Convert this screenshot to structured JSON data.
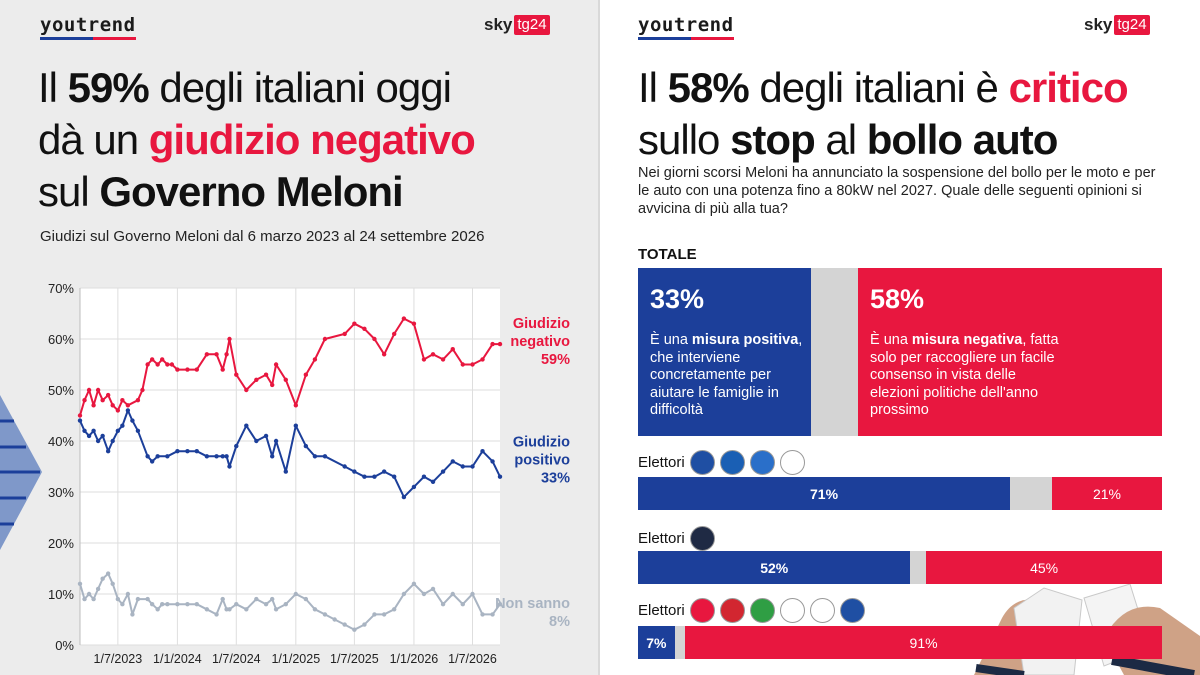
{
  "left": {
    "logo": "youtrend",
    "broadcaster": {
      "sky": "sky",
      "tg": "tg24"
    },
    "headline": {
      "l1_pre": "Il ",
      "l1_bold": "59%",
      "l1_post": " degli italiani oggi",
      "l2_pre": "dà un ",
      "l2_red": "giudizio negativo",
      "l3_pre": "sul ",
      "l3_bold": "Governo Meloni"
    },
    "subtitle": "Giudizi sul Governo Meloni dal 6 marzo 2023 al 24 settembre 2026"
  },
  "chart_data": {
    "type": "line",
    "subtitle": "Giudizi sul Governo Meloni dal 6 marzo 2023 al 24 settembre 2026",
    "x_ticks": [
      "1/7/2023",
      "1/1/2024",
      "1/7/2024",
      "1/1/2025",
      "1/7/2025",
      "1/1/2026",
      "1/7/2026"
    ],
    "y_ticks": [
      "0%",
      "10%",
      "20%",
      "30%",
      "40%",
      "50%",
      "60%",
      "70%"
    ],
    "ylim": [
      0,
      70
    ],
    "xlim": [
      "2023-03-06",
      "2026-09-24"
    ],
    "grid": true,
    "series": [
      {
        "name": "Giudizio negativo",
        "end_label": "59%",
        "color": "#e8173f",
        "points": [
          [
            "2023-03-06",
            45
          ],
          [
            "2023-03-20",
            48
          ],
          [
            "2023-04-03",
            50
          ],
          [
            "2023-04-17",
            47
          ],
          [
            "2023-05-01",
            50
          ],
          [
            "2023-05-15",
            48
          ],
          [
            "2023-06-01",
            49
          ],
          [
            "2023-06-15",
            47
          ],
          [
            "2023-07-01",
            46
          ],
          [
            "2023-07-15",
            48
          ],
          [
            "2023-08-01",
            47
          ],
          [
            "2023-09-01",
            48
          ],
          [
            "2023-09-15",
            50
          ],
          [
            "2023-10-01",
            55
          ],
          [
            "2023-10-15",
            56
          ],
          [
            "2023-11-01",
            55
          ],
          [
            "2023-11-15",
            56
          ],
          [
            "2023-12-01",
            55
          ],
          [
            "2023-12-15",
            55
          ],
          [
            "2024-01-01",
            54
          ],
          [
            "2024-02-01",
            54
          ],
          [
            "2024-03-01",
            54
          ],
          [
            "2024-04-01",
            57
          ],
          [
            "2024-05-01",
            57
          ],
          [
            "2024-05-20",
            54
          ],
          [
            "2024-06-01",
            57
          ],
          [
            "2024-06-10",
            60
          ],
          [
            "2024-07-01",
            53
          ],
          [
            "2024-08-01",
            50
          ],
          [
            "2024-09-01",
            52
          ],
          [
            "2024-10-01",
            53
          ],
          [
            "2024-10-20",
            51
          ],
          [
            "2024-11-01",
            55
          ],
          [
            "2024-12-01",
            52
          ],
          [
            "2025-01-01",
            47
          ],
          [
            "2025-02-01",
            53
          ],
          [
            "2025-03-01",
            56
          ],
          [
            "2025-04-01",
            60
          ],
          [
            "2025-06-01",
            61
          ],
          [
            "2025-07-01",
            63
          ],
          [
            "2025-08-01",
            62
          ],
          [
            "2025-09-01",
            60
          ],
          [
            "2025-10-01",
            57
          ],
          [
            "2025-11-01",
            61
          ],
          [
            "2025-12-01",
            64
          ],
          [
            "2026-01-01",
            63
          ],
          [
            "2026-02-01",
            56
          ],
          [
            "2026-03-01",
            57
          ],
          [
            "2026-04-01",
            56
          ],
          [
            "2026-05-01",
            58
          ],
          [
            "2026-06-01",
            55
          ],
          [
            "2026-07-01",
            55
          ],
          [
            "2026-08-01",
            56
          ],
          [
            "2026-09-01",
            59
          ],
          [
            "2026-09-24",
            59
          ]
        ]
      },
      {
        "name": "Giudizio positivo",
        "end_label": "33%",
        "color": "#1c3f9a",
        "points": [
          [
            "2023-03-06",
            44
          ],
          [
            "2023-03-20",
            42
          ],
          [
            "2023-04-03",
            41
          ],
          [
            "2023-04-17",
            42
          ],
          [
            "2023-05-01",
            40
          ],
          [
            "2023-05-15",
            41
          ],
          [
            "2023-06-01",
            38
          ],
          [
            "2023-06-15",
            40
          ],
          [
            "2023-07-01",
            42
          ],
          [
            "2023-07-15",
            43
          ],
          [
            "2023-08-01",
            46
          ],
          [
            "2023-08-15",
            44
          ],
          [
            "2023-09-01",
            42
          ],
          [
            "2023-10-01",
            37
          ],
          [
            "2023-10-15",
            36
          ],
          [
            "2023-11-01",
            37
          ],
          [
            "2023-12-01",
            37
          ],
          [
            "2024-01-01",
            38
          ],
          [
            "2024-02-01",
            38
          ],
          [
            "2024-03-01",
            38
          ],
          [
            "2024-04-01",
            37
          ],
          [
            "2024-05-01",
            37
          ],
          [
            "2024-05-20",
            37
          ],
          [
            "2024-06-01",
            37
          ],
          [
            "2024-06-10",
            35
          ],
          [
            "2024-07-01",
            39
          ],
          [
            "2024-08-01",
            43
          ],
          [
            "2024-09-01",
            40
          ],
          [
            "2024-10-01",
            41
          ],
          [
            "2024-10-20",
            37
          ],
          [
            "2024-11-01",
            40
          ],
          [
            "2024-12-01",
            34
          ],
          [
            "2025-01-01",
            43
          ],
          [
            "2025-02-01",
            39
          ],
          [
            "2025-03-01",
            37
          ],
          [
            "2025-04-01",
            37
          ],
          [
            "2025-06-01",
            35
          ],
          [
            "2025-07-01",
            34
          ],
          [
            "2025-08-01",
            33
          ],
          [
            "2025-09-01",
            33
          ],
          [
            "2025-10-01",
            34
          ],
          [
            "2025-11-01",
            33
          ],
          [
            "2025-12-01",
            29
          ],
          [
            "2026-01-01",
            31
          ],
          [
            "2026-02-01",
            33
          ],
          [
            "2026-03-01",
            32
          ],
          [
            "2026-04-01",
            34
          ],
          [
            "2026-05-01",
            36
          ],
          [
            "2026-06-01",
            35
          ],
          [
            "2026-07-01",
            35
          ],
          [
            "2026-08-01",
            38
          ],
          [
            "2026-09-01",
            36
          ],
          [
            "2026-09-24",
            33
          ]
        ]
      },
      {
        "name": "Non sanno",
        "end_label": "8%",
        "color": "#a9b4c2",
        "points": [
          [
            "2023-03-06",
            12
          ],
          [
            "2023-03-20",
            9
          ],
          [
            "2023-04-03",
            10
          ],
          [
            "2023-04-17",
            9
          ],
          [
            "2023-05-01",
            11
          ],
          [
            "2023-05-15",
            13
          ],
          [
            "2023-06-01",
            14
          ],
          [
            "2023-06-15",
            12
          ],
          [
            "2023-07-01",
            9
          ],
          [
            "2023-07-15",
            8
          ],
          [
            "2023-08-01",
            10
          ],
          [
            "2023-08-15",
            6
          ],
          [
            "2023-09-01",
            9
          ],
          [
            "2023-10-01",
            9
          ],
          [
            "2023-10-15",
            8
          ],
          [
            "2023-11-01",
            7
          ],
          [
            "2023-11-15",
            8
          ],
          [
            "2023-12-01",
            8
          ],
          [
            "2024-01-01",
            8
          ],
          [
            "2024-02-01",
            8
          ],
          [
            "2024-03-01",
            8
          ],
          [
            "2024-04-01",
            7
          ],
          [
            "2024-05-01",
            6
          ],
          [
            "2024-05-20",
            9
          ],
          [
            "2024-06-01",
            7
          ],
          [
            "2024-06-10",
            7
          ],
          [
            "2024-07-01",
            8
          ],
          [
            "2024-08-01",
            7
          ],
          [
            "2024-09-01",
            9
          ],
          [
            "2024-10-01",
            8
          ],
          [
            "2024-10-20",
            9
          ],
          [
            "2024-11-01",
            7
          ],
          [
            "2024-12-01",
            8
          ],
          [
            "2025-01-01",
            10
          ],
          [
            "2025-02-01",
            9
          ],
          [
            "2025-03-01",
            7
          ],
          [
            "2025-04-01",
            6
          ],
          [
            "2025-05-01",
            5
          ],
          [
            "2025-06-01",
            4
          ],
          [
            "2025-07-01",
            3
          ],
          [
            "2025-08-01",
            4
          ],
          [
            "2025-09-01",
            6
          ],
          [
            "2025-10-01",
            6
          ],
          [
            "2025-11-01",
            7
          ],
          [
            "2025-12-01",
            10
          ],
          [
            "2026-01-01",
            12
          ],
          [
            "2026-02-01",
            10
          ],
          [
            "2026-03-01",
            11
          ],
          [
            "2026-04-01",
            8
          ],
          [
            "2026-05-01",
            10
          ],
          [
            "2026-06-01",
            8
          ],
          [
            "2026-07-01",
            10
          ],
          [
            "2026-08-01",
            6
          ],
          [
            "2026-09-01",
            6
          ],
          [
            "2026-09-24",
            8
          ]
        ]
      }
    ]
  },
  "right": {
    "logo": "youtrend",
    "broadcaster": {
      "sky": "sky",
      "tg": "tg24"
    },
    "headline": {
      "l1_pre": "Il ",
      "l1_bold": "58%",
      "l1_mid": " degli italiani è ",
      "l1_red": "critico",
      "l2_pre": "sullo ",
      "l2_bold1": "stop",
      "l2_mid": " al ",
      "l2_bold2": "bollo auto"
    },
    "question": "Nei giorni scorsi Meloni ha annunciato la sospensione del bollo per le moto e per le auto con una potenza fino a 80kW nel 2027. Quale delle seguenti opinioni si avvicina di più alla tua?",
    "totale_label": "TOTALE",
    "totale": {
      "positive_pct": 33,
      "positive_label": "33%",
      "positive_text": {
        "pre": "È una ",
        "bold": "misura positiva",
        "post": ", che interviene concretamente per aiutare le famiglie in difficoltà"
      },
      "negative_pct": 58,
      "negative_label": "58%",
      "negative_text": {
        "pre": "È una ",
        "bold": "misura negativa",
        "post": ", fatta solo per raccogliere un facile consenso in vista delle elezioni politiche dell'anno prossimo"
      }
    },
    "groups": [
      {
        "label": "Elettori",
        "positive": 71,
        "negative": 21,
        "positive_label": "71%",
        "negative_label": "21%",
        "logos": [
          "#1f4fa3",
          "#1a5fb4",
          "#2a6fc9",
          "#ffffff"
        ]
      },
      {
        "label": "Elettori",
        "positive": 52,
        "negative": 45,
        "positive_label": "52%",
        "negative_label": "45%",
        "logos": [
          "#1f2a44"
        ]
      },
      {
        "label": "Elettori",
        "positive": 7,
        "negative": 91,
        "positive_label": "7%",
        "negative_label": "91%",
        "logos": [
          "#e8173f",
          "#d22630",
          "#2f9e44",
          "#ffffff",
          "#ffffff",
          "#1f4fa3"
        ]
      }
    ],
    "colors": {
      "blue": "#1c3f9a",
      "red": "#e8173f",
      "grey": "#d4d4d4"
    }
  }
}
